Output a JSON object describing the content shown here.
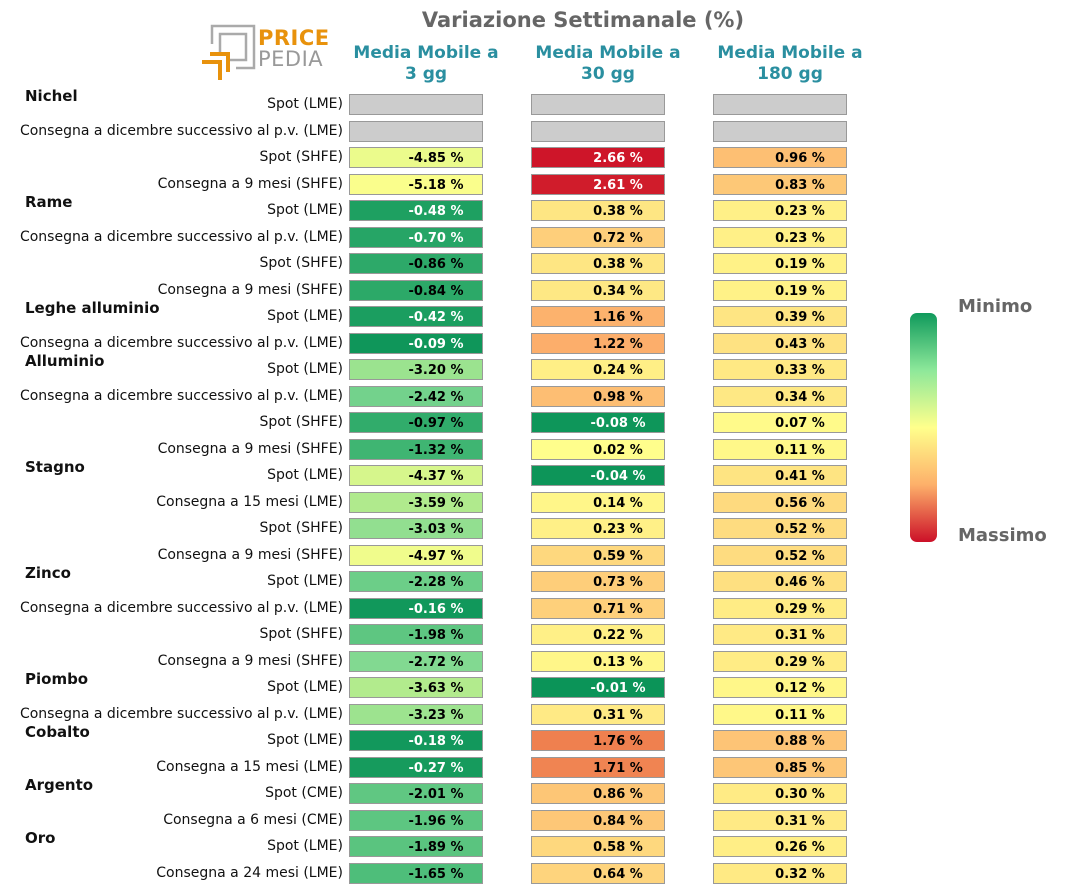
{
  "title": "Variazione Settimanale (%)",
  "logo": {
    "price": "PRICE",
    "pedia": "PEDIA"
  },
  "columns": [
    "Media Mobile a\n3 gg",
    "Media Mobile a\n30 gg",
    "Media Mobile a\n180 gg"
  ],
  "legend": {
    "min_label": "Minimo",
    "max_label": "Massimo"
  },
  "colors": {
    "low": "#109a5c",
    "mid": "#ffff8c",
    "high": "#cc1028",
    "empty": "#cccccc"
  },
  "chart_data": {
    "type": "heatmap",
    "title": "Variazione Settimanale (%)",
    "unit": "%",
    "columns": [
      "Media Mobile a 3 gg",
      "Media Mobile a 30 gg",
      "Media Mobile a 180 gg"
    ],
    "groups": [
      {
        "name": "Nichel",
        "rows": [
          {
            "label": "Spot (LME)",
            "values": [
              null,
              null,
              null
            ]
          },
          {
            "label": "Consegna a dicembre successivo al p.v. (LME)",
            "values": [
              null,
              null,
              null
            ]
          },
          {
            "label": "Spot (SHFE)",
            "values": [
              -4.85,
              2.66,
              0.96
            ]
          },
          {
            "label": "Consegna a 9 mesi (SHFE)",
            "values": [
              -5.18,
              2.61,
              0.83
            ]
          }
        ]
      },
      {
        "name": "Rame",
        "rows": [
          {
            "label": "Spot (LME)",
            "values": [
              -0.48,
              0.38,
              0.23
            ]
          },
          {
            "label": "Consegna a dicembre successivo al p.v. (LME)",
            "values": [
              -0.7,
              0.72,
              0.23
            ]
          },
          {
            "label": "Spot (SHFE)",
            "values": [
              -0.86,
              0.38,
              0.19
            ]
          },
          {
            "label": "Consegna a 9 mesi (SHFE)",
            "values": [
              -0.84,
              0.34,
              0.19
            ]
          }
        ]
      },
      {
        "name": "Leghe alluminio",
        "rows": [
          {
            "label": "Spot (LME)",
            "values": [
              -0.42,
              1.16,
              0.39
            ]
          },
          {
            "label": "Consegna a dicembre successivo al p.v. (LME)",
            "values": [
              -0.09,
              1.22,
              0.43
            ]
          }
        ]
      },
      {
        "name": "Alluminio",
        "rows": [
          {
            "label": "Spot (LME)",
            "values": [
              -3.2,
              0.24,
              0.33
            ]
          },
          {
            "label": "Consegna a dicembre successivo al p.v. (LME)",
            "values": [
              -2.42,
              0.98,
              0.34
            ]
          },
          {
            "label": "Spot (SHFE)",
            "values": [
              -0.97,
              -0.08,
              0.07
            ]
          },
          {
            "label": "Consegna a 9 mesi (SHFE)",
            "values": [
              -1.32,
              0.02,
              0.11
            ]
          }
        ]
      },
      {
        "name": "Stagno",
        "rows": [
          {
            "label": "Spot (LME)",
            "values": [
              -4.37,
              -0.04,
              0.41
            ]
          },
          {
            "label": "Consegna a 15 mesi (LME)",
            "values": [
              -3.59,
              0.14,
              0.56
            ]
          },
          {
            "label": "Spot (SHFE)",
            "values": [
              -3.03,
              0.23,
              0.52
            ]
          },
          {
            "label": "Consegna a 9 mesi (SHFE)",
            "values": [
              -4.97,
              0.59,
              0.52
            ]
          }
        ]
      },
      {
        "name": "Zinco",
        "rows": [
          {
            "label": "Spot (LME)",
            "values": [
              -2.28,
              0.73,
              0.46
            ]
          },
          {
            "label": "Consegna a dicembre successivo al p.v. (LME)",
            "values": [
              -0.16,
              0.71,
              0.29
            ]
          },
          {
            "label": "Spot (SHFE)",
            "values": [
              -1.98,
              0.22,
              0.31
            ]
          },
          {
            "label": "Consegna a 9 mesi (SHFE)",
            "values": [
              -2.72,
              0.13,
              0.29
            ]
          }
        ]
      },
      {
        "name": "Piombo",
        "rows": [
          {
            "label": "Spot (LME)",
            "values": [
              -3.63,
              -0.01,
              0.12
            ]
          },
          {
            "label": "Consegna a dicembre successivo al p.v. (LME)",
            "values": [
              -3.23,
              0.31,
              0.11
            ]
          }
        ]
      },
      {
        "name": "Cobalto",
        "rows": [
          {
            "label": "Spot (LME)",
            "values": [
              -0.18,
              1.76,
              0.88
            ]
          },
          {
            "label": "Consegna a 15 mesi (LME)",
            "values": [
              -0.27,
              1.71,
              0.85
            ]
          }
        ]
      },
      {
        "name": "Argento",
        "rows": [
          {
            "label": "Spot (CME)",
            "values": [
              -2.01,
              0.86,
              0.3
            ]
          },
          {
            "label": "Consegna a 6 mesi (CME)",
            "values": [
              -1.96,
              0.84,
              0.31
            ]
          }
        ]
      },
      {
        "name": "Oro",
        "rows": [
          {
            "label": "Spot (LME)",
            "values": [
              -1.89,
              0.58,
              0.26
            ]
          },
          {
            "label": "Consegna a 24 mesi (LME)",
            "values": [
              -1.65,
              0.64,
              0.32
            ]
          }
        ]
      }
    ]
  }
}
